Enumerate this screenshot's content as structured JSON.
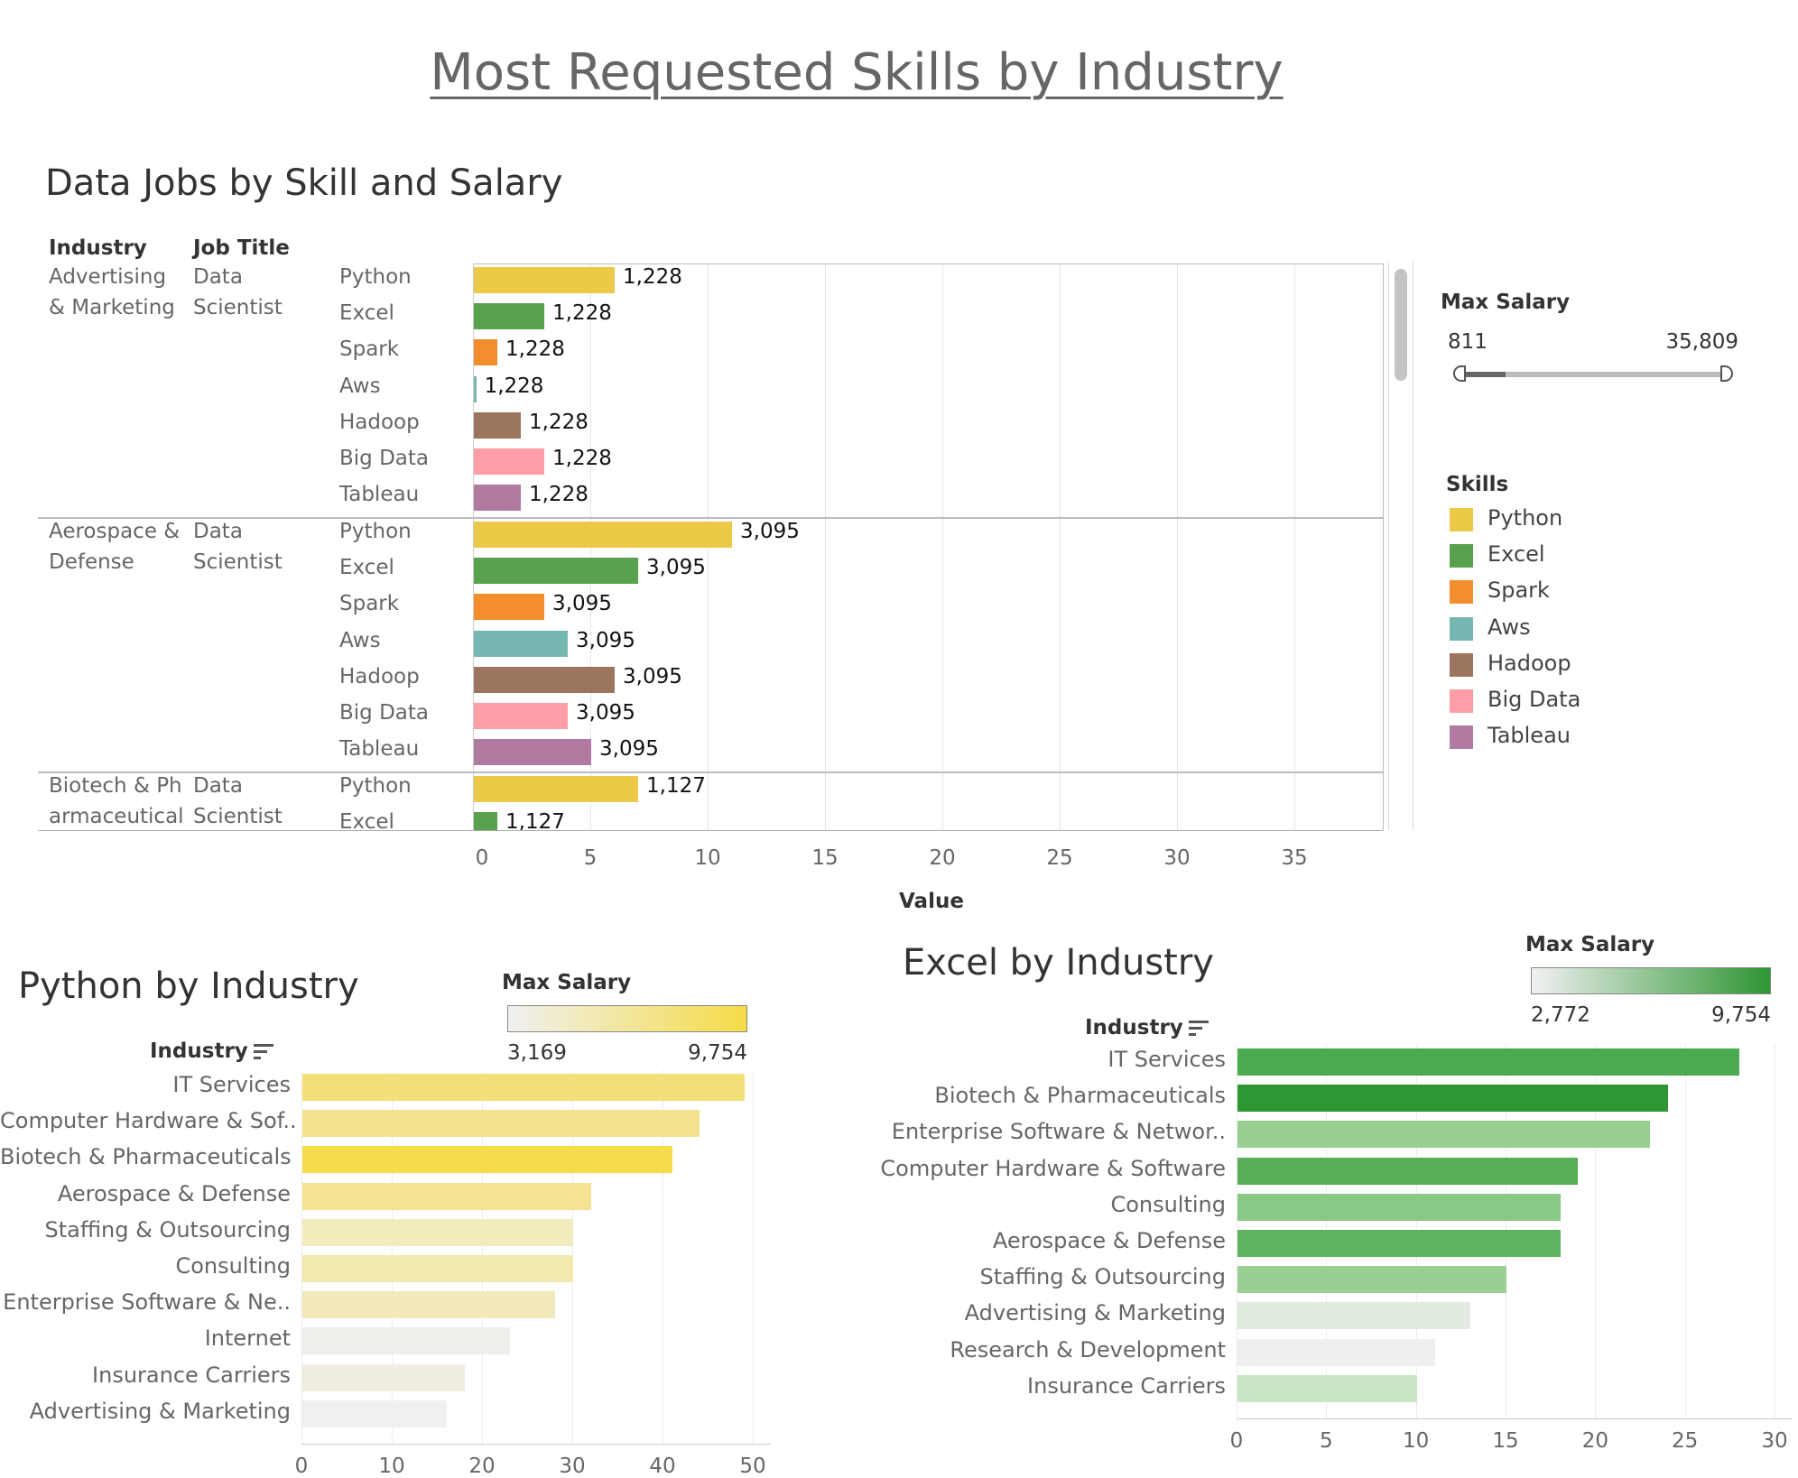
{
  "title": "Most Requested Skills by Industry",
  "colors": {
    "Python": "#edc948",
    "Excel": "#59a14f",
    "Spark": "#f28e2b",
    "Aws": "#76b7b2",
    "Hadoop": "#9c755f",
    "Big Data": "#ff9da7",
    "Tableau": "#b07aa1"
  },
  "top_chart": {
    "title": "Data Jobs by Skill and Salary",
    "col_headers": {
      "industry": "Industry",
      "job_title": "Job Title"
    },
    "x_axis_label": "Value",
    "ticks": [
      "0",
      "5",
      "10",
      "15",
      "20",
      "25",
      "30",
      "35"
    ],
    "groups": [
      {
        "industry": "Advertising & Marketing",
        "job_title": "Data Scientist",
        "salary_label": "1,228",
        "rows": [
          {
            "skill": "Python",
            "value": 6
          },
          {
            "skill": "Excel",
            "value": 3
          },
          {
            "skill": "Spark",
            "value": 1
          },
          {
            "skill": "Aws",
            "value": 0.1
          },
          {
            "skill": "Hadoop",
            "value": 2
          },
          {
            "skill": "Big Data",
            "value": 3
          },
          {
            "skill": "Tableau",
            "value": 2
          }
        ]
      },
      {
        "industry": "Aerospace & Defense",
        "job_title": "Data Scientist",
        "salary_label": "3,095",
        "rows": [
          {
            "skill": "Python",
            "value": 11
          },
          {
            "skill": "Excel",
            "value": 7
          },
          {
            "skill": "Spark",
            "value": 3
          },
          {
            "skill": "Aws",
            "value": 4
          },
          {
            "skill": "Hadoop",
            "value": 6
          },
          {
            "skill": "Big Data",
            "value": 4
          },
          {
            "skill": "Tableau",
            "value": 5
          }
        ]
      },
      {
        "industry": "Biotech & Pharmaceutical",
        "job_title": "Data Scientist",
        "salary_label": "1,127",
        "rows": [
          {
            "skill": "Python",
            "value": 7
          },
          {
            "skill": "Excel",
            "value": 1
          }
        ]
      }
    ]
  },
  "max_salary_filter": {
    "title": "Max Salary",
    "min_label": "811",
    "max_label": "35,809"
  },
  "skills_legend": {
    "title": "Skills",
    "items": [
      "Python",
      "Excel",
      "Spark",
      "Aws",
      "Hadoop",
      "Big Data",
      "Tableau"
    ]
  },
  "python_chart": {
    "title": "Python by Industry",
    "axis_header": "Industry",
    "legend": {
      "title": "Max Salary",
      "min_label": "3,169",
      "max_label": "9,754",
      "color_low": "#f0f0f0",
      "color_high": "#f5dc47"
    },
    "ticks": [
      "0",
      "10",
      "20",
      "30",
      "40",
      "50"
    ],
    "rows": [
      {
        "label": "IT Services",
        "value": 49,
        "color": "#f4e07b"
      },
      {
        "label": "Computer Hardware & Sof..",
        "value": 44,
        "color": "#f3e38c"
      },
      {
        "label": "Biotech & Pharmaceuticals",
        "value": 41,
        "color": "#f5dc4a"
      },
      {
        "label": "Aerospace & Defense",
        "value": 32,
        "color": "#f3e393"
      },
      {
        "label": "Staffing & Outsourcing",
        "value": 30,
        "color": "#f2ebbc"
      },
      {
        "label": "Consulting",
        "value": 30,
        "color": "#f2e9af"
      },
      {
        "label": "Enterprise Software & Ne..",
        "value": 28,
        "color": "#f2eaba"
      },
      {
        "label": "Internet",
        "value": 23,
        "color": "#efeeea"
      },
      {
        "label": "Insurance Carriers",
        "value": 18,
        "color": "#f1eee1"
      },
      {
        "label": "Advertising & Marketing",
        "value": 16,
        "color": "#f0f0f0"
      }
    ]
  },
  "excel_chart": {
    "title": "Excel by Industry",
    "axis_header": "Industry",
    "legend": {
      "title": "Max Salary",
      "min_label": "2,772",
      "max_label": "9,754",
      "color_low": "#f0f0f0",
      "color_high": "#2e9633"
    },
    "ticks": [
      "0",
      "5",
      "10",
      "15",
      "20",
      "25",
      "30"
    ],
    "rows": [
      {
        "label": "IT Services",
        "value": 28,
        "color": "#4caa50"
      },
      {
        "label": "Biotech & Pharmaceuticals",
        "value": 24,
        "color": "#2e9633"
      },
      {
        "label": "Enterprise Software & Networ..",
        "value": 23,
        "color": "#97cf91"
      },
      {
        "label": "Computer Hardware & Software",
        "value": 19,
        "color": "#58ad56"
      },
      {
        "label": "Consulting",
        "value": 18,
        "color": "#89c985"
      },
      {
        "label": "Aerospace & Defense",
        "value": 18,
        "color": "#5fb35e"
      },
      {
        "label": "Staffing & Outsourcing",
        "value": 15,
        "color": "#99cf93"
      },
      {
        "label": "Advertising & Marketing",
        "value": 13,
        "color": "#e1ebe0"
      },
      {
        "label": "Research & Development",
        "value": 11,
        "color": "#efefef"
      },
      {
        "label": "Insurance Carriers",
        "value": 10,
        "color": "#cbe5c7"
      }
    ]
  }
}
